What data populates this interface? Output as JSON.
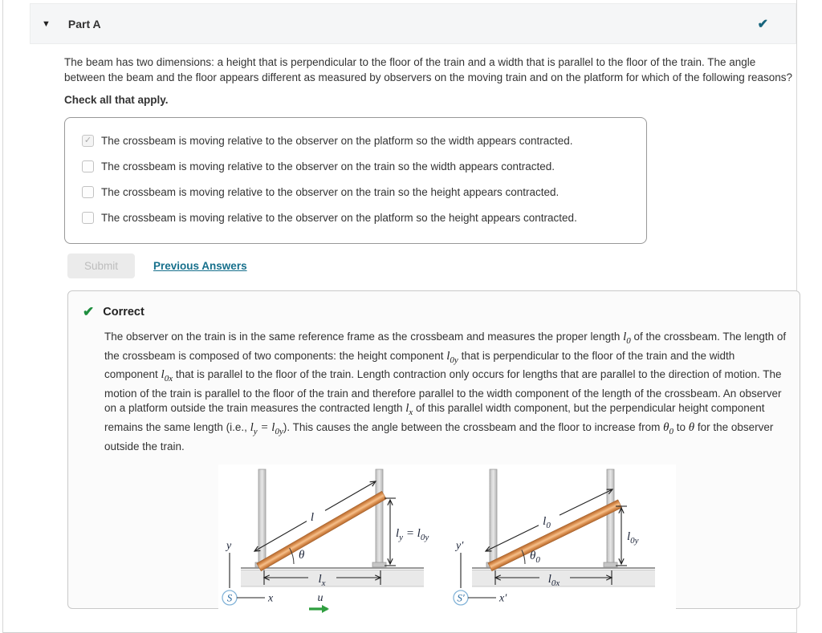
{
  "header": {
    "title": "Part A",
    "collapse_icon": "▼",
    "status_icon": "✔"
  },
  "question": {
    "text": "The beam has two dimensions: a height that is perpendicular to the floor of the train and a width that is parallel to the floor of the train. The angle between the beam and the floor appears different as measured by observers on the moving train and on the platform for which of the following reasons?",
    "instruction": "Check all that apply.",
    "options": [
      {
        "checked": true,
        "label": "The crossbeam is moving relative to the observer on the platform so the width appears contracted."
      },
      {
        "checked": false,
        "label": "The crossbeam is moving relative to the observer on the train so the width appears contracted."
      },
      {
        "checked": false,
        "label": "The crossbeam is moving relative to the observer on the train so the height appears contracted."
      },
      {
        "checked": false,
        "label": "The crossbeam is moving relative to the observer on the platform so the height appears contracted."
      }
    ]
  },
  "actions": {
    "submit_label": "Submit",
    "previous_answers_label": "Previous Answers"
  },
  "feedback": {
    "title": "Correct",
    "check_icon": "✔",
    "explanation_segments": [
      [
        "t",
        "The observer on the train is in the same reference frame as the crossbeam and measures the proper length "
      ],
      [
        "m",
        "l_0"
      ],
      [
        "t",
        " of the crossbeam. The length of the crossbeam is composed of two components: the height component "
      ],
      [
        "m",
        "l_0y"
      ],
      [
        "t",
        " that is perpendicular to the floor of the train and the width component "
      ],
      [
        "m",
        "l_0x"
      ],
      [
        "t",
        " that is parallel to the floor of the train. Length contraction only occurs for lengths that are parallel to the direction of motion. The motion of the train is parallel to the floor of the train and therefore parallel to the width component of the length of the crossbeam. An observer on a platform outside the train measures the contracted length "
      ],
      [
        "m",
        "l_x"
      ],
      [
        "t",
        " of this parallel width component, but the perpendicular height component remains the same length (i.e., "
      ],
      [
        "m",
        "l_y = l_0y"
      ],
      [
        "t",
        "). This causes the angle between the crossbeam and the floor to increase from "
      ],
      [
        "m",
        "θ_0"
      ],
      [
        "t",
        " to "
      ],
      [
        "m",
        "θ"
      ],
      [
        "t",
        " for the observer outside the train."
      ]
    ]
  },
  "figure": {
    "left": {
      "beam_length": "l",
      "angle": "θ",
      "height": "l_y = l_0y",
      "width": "l_x",
      "axis_y": "y",
      "frame": "S",
      "axis_x": "x",
      "velocity": "u"
    },
    "right": {
      "beam_length": "l_0",
      "angle": "θ_0",
      "height": "l_0y",
      "width": "l_0x",
      "axis_y": "y′",
      "frame": "S′",
      "axis_x": "x′"
    }
  },
  "colors": {
    "header_check_teal": "#17657d",
    "link_teal": "#17708c",
    "correct_green": "#1e8e3e",
    "beam_orange": "#d98e4e",
    "velocity_green": "#2f9e3f"
  }
}
